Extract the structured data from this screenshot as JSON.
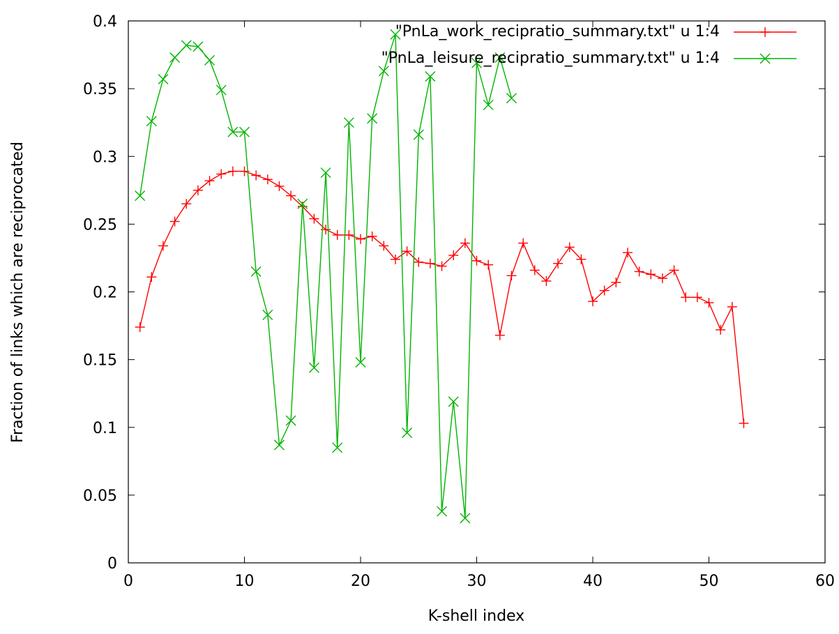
{
  "chart_data": {
    "type": "line",
    "xlabel": "K-shell index",
    "ylabel": "Fraction of links which are reciprocated",
    "xlim": [
      0,
      60
    ],
    "ylim": [
      0,
      0.4
    ],
    "x_ticks": [
      "0",
      "10",
      "20",
      "30",
      "40",
      "50",
      "60"
    ],
    "y_ticks": [
      "0",
      "0.05",
      "0.1",
      "0.15",
      "0.2",
      "0.25",
      "0.3",
      "0.35",
      "0.4"
    ],
    "grid": false,
    "legend_position": "top-right",
    "series": [
      {
        "name": "\"PnLa_work_recipratio_summary.txt\" u 1:4",
        "color": "#ff0000",
        "marker": "plus",
        "x": [
          1,
          2,
          3,
          4,
          5,
          6,
          7,
          8,
          9,
          10,
          11,
          12,
          13,
          14,
          15,
          16,
          17,
          18,
          19,
          20,
          21,
          22,
          23,
          24,
          25,
          26,
          27,
          28,
          29,
          30,
          31,
          32,
          33,
          34,
          35,
          36,
          37,
          38,
          39,
          40,
          41,
          42,
          43,
          44,
          45,
          46,
          47,
          48,
          49,
          50,
          51,
          52,
          53
        ],
        "values": [
          0.174,
          0.211,
          0.234,
          0.252,
          0.265,
          0.275,
          0.282,
          0.287,
          0.289,
          0.289,
          0.286,
          0.283,
          0.278,
          0.271,
          0.263,
          0.254,
          0.246,
          0.242,
          0.242,
          0.239,
          0.241,
          0.234,
          0.224,
          0.23,
          0.222,
          0.221,
          0.219,
          0.227,
          0.236,
          0.223,
          0.22,
          0.168,
          0.212,
          0.236,
          0.216,
          0.208,
          0.221,
          0.233,
          0.224,
          0.193,
          0.201,
          0.207,
          0.229,
          0.215,
          0.213,
          0.21,
          0.216,
          0.196,
          0.196,
          0.192,
          0.172,
          0.189,
          0.103
        ]
      },
      {
        "name": "\"PnLa_leisure_recipratio_summary.txt\" u 1:4",
        "color": "#00b400",
        "marker": "cross",
        "x": [
          1,
          2,
          3,
          4,
          5,
          6,
          7,
          8,
          9,
          10,
          11,
          12,
          13,
          14,
          15,
          16,
          17,
          18,
          19,
          20,
          21,
          22,
          23,
          24,
          25,
          26,
          27,
          28,
          29,
          30,
          31,
          32,
          33
        ],
        "values": [
          0.271,
          0.326,
          0.357,
          0.373,
          0.382,
          0.381,
          0.371,
          0.349,
          0.318,
          0.318,
          0.215,
          0.183,
          0.087,
          0.105,
          0.265,
          0.144,
          0.288,
          0.085,
          0.325,
          0.148,
          0.328,
          0.363,
          0.39,
          0.096,
          0.316,
          0.359,
          0.038,
          0.119,
          0.033,
          0.369,
          0.338,
          0.373,
          0.343
        ]
      }
    ]
  }
}
